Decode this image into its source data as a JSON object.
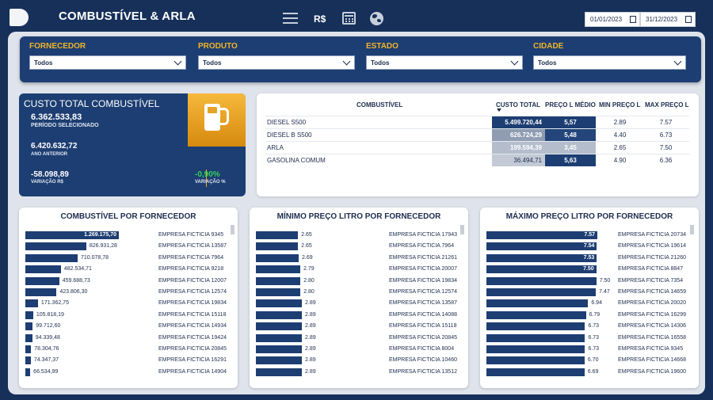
{
  "header": {
    "title": "COMBUSTÍVEL & ARLA",
    "currency_label": "R$",
    "date_start": "01/01/2023",
    "date_end": "31/12/2023"
  },
  "icons": [
    "menu-icon",
    "calendar-icon",
    "globe-icon",
    "fuel-pump-icon",
    "chevron-down-icon"
  ],
  "filters": [
    {
      "label": "FORNECEDOR",
      "value": "Todos"
    },
    {
      "label": "PRODUTO",
      "value": "Todos"
    },
    {
      "label": "ESTADO",
      "value": "Todos"
    },
    {
      "label": "CIDADE",
      "value": "Todos"
    }
  ],
  "kpi": {
    "title": "CUSTO TOTAL COMBUSTÍVEL",
    "selected_value": "6.362.533,83",
    "selected_label": "PERÍODO SELECIONADO",
    "previous_value": "6.420.632,72",
    "previous_label": "ANO ANTERIOR",
    "variation_value": "-58.098,89",
    "variation_label": "VARIAÇÃO R$",
    "variation_pct": "-0,90%",
    "variation_pct_label": "VARIAÇÃO %"
  },
  "fuel_table": {
    "headers": [
      "COMBUSTÍVEL",
      "CUSTO TOTAL",
      "PREÇO L MÉDIO",
      "MIN PREÇO L",
      "MAX PREÇO L"
    ],
    "rows": [
      {
        "name": "DIESEL S500",
        "cost": "5.499.720,44",
        "avg": "5,57",
        "min": "2.89",
        "max": "7.57"
      },
      {
        "name": "DIESEL B S500",
        "cost": "626.724,29",
        "avg": "5,48",
        "min": "4.40",
        "max": "6.73"
      },
      {
        "name": "ARLA",
        "cost": "199.594,39",
        "avg": "3,45",
        "min": "2.65",
        "max": "7.50"
      },
      {
        "name": "GASOLINA COMUM",
        "cost": "36.494,71",
        "avg": "5,63",
        "min": "4.90",
        "max": "6.36"
      }
    ]
  },
  "colors": {
    "navy": "#1d3e72",
    "accent_yellow": "#f0b429",
    "positive_green": "#34d058"
  },
  "chart_data": [
    {
      "type": "bar",
      "title": "COMBUSTÍVEL POR FORNECEDOR",
      "categories": [
        "EMPRESA FICTICIA 9345",
        "EMPRESA FICTICIA 13587",
        "EMPRESA FICTICIA 7964",
        "EMPRESA FICTICIA 9218",
        "EMPRESA FICTICIA 12007",
        "EMPRESA FICTICIA 12574",
        "EMPRESA FICTICIA 19834",
        "EMPRESA FICTICIA 15118",
        "EMPRESA FICTICIA 14934",
        "EMPRESA FICTICIA 19424",
        "EMPRESA FICTICIA 20845",
        "EMPRESA FICTICIA 16291",
        "EMPRESA FICTICIA 14904"
      ],
      "values": [
        1269175.7,
        826931.28,
        710078.78,
        482534.71,
        459688.73,
        423806.3,
        171362.75,
        105818.19,
        99712.6,
        94339.48,
        78304.76,
        74347.37,
        66534.99
      ],
      "labels": [
        "1.269.175,70",
        "826.931,28",
        "710.078,78",
        "482.534,71",
        "459.688,73",
        "423.806,30",
        "171.362,75",
        "105.818,19",
        "99.712,60",
        "94.339,48",
        "78.304,76",
        "74.347,37",
        "66.534,99"
      ],
      "xlim": [
        0,
        1269175.7
      ]
    },
    {
      "type": "bar",
      "title": "MÍNIMO PREÇO LITRO POR FORNECEDOR",
      "categories": [
        "EMPRESA FICTICIA 17943",
        "EMPRESA FICTICIA 7964",
        "EMPRESA FICTICIA 21261",
        "EMPRESA FICTICIA 20007",
        "EMPRESA FICTICIA 19834",
        "EMPRESA FICTICIA 12574",
        "EMPRESA FICTICIA 13587",
        "EMPRESA FICTICIA 14088",
        "EMPRESA FICTICIA 15118",
        "EMPRESA FICTICIA 20845",
        "EMPRESA FICTICIA 8004",
        "EMPRESA FICTICIA 10460",
        "EMPRESA FICTICIA 13512"
      ],
      "values": [
        2.65,
        2.65,
        2.69,
        2.79,
        2.8,
        2.8,
        2.89,
        2.89,
        2.89,
        2.89,
        2.89,
        2.89,
        2.89
      ],
      "labels": [
        "2.65",
        "2.65",
        "2.69",
        "2.79",
        "2.80",
        "2.80",
        "2.89",
        "2.89",
        "2.89",
        "2.89",
        "2.89",
        "2.89",
        "2.89"
      ],
      "xlim": [
        0,
        2.89
      ]
    },
    {
      "type": "bar",
      "title": "MÁXIMO PREÇO LITRO POR FORNECEDOR",
      "categories": [
        "EMPRESA FICTICIA 20734",
        "EMPRESA FICTICIA 19614",
        "EMPRESA FICTICIA 21260",
        "EMPRESA FICTICIA 8847",
        "EMPRESA FICTICIA 7354",
        "EMPRESA FICTICIA 14659",
        "EMPRESA FICTICIA 20020",
        "EMPRESA FICTICIA 16299",
        "EMPRESA FICTICIA 14306",
        "EMPRESA FICTICIA 16558",
        "EMPRESA FICTICIA 9345",
        "EMPRESA FICTICIA 14668",
        "EMPRESA FICTICIA 19600"
      ],
      "values": [
        7.57,
        7.54,
        7.53,
        7.5,
        7.5,
        7.47,
        6.94,
        6.79,
        6.73,
        6.73,
        6.73,
        6.7,
        6.69
      ],
      "labels": [
        "7.57",
        "7.54",
        "7.53",
        "7.50",
        "7.50",
        "7.47",
        "6.94",
        "6.79",
        "6.73",
        "6.73",
        "6.73",
        "6.70",
        "6.69"
      ],
      "xlim": [
        0,
        7.57
      ]
    }
  ]
}
